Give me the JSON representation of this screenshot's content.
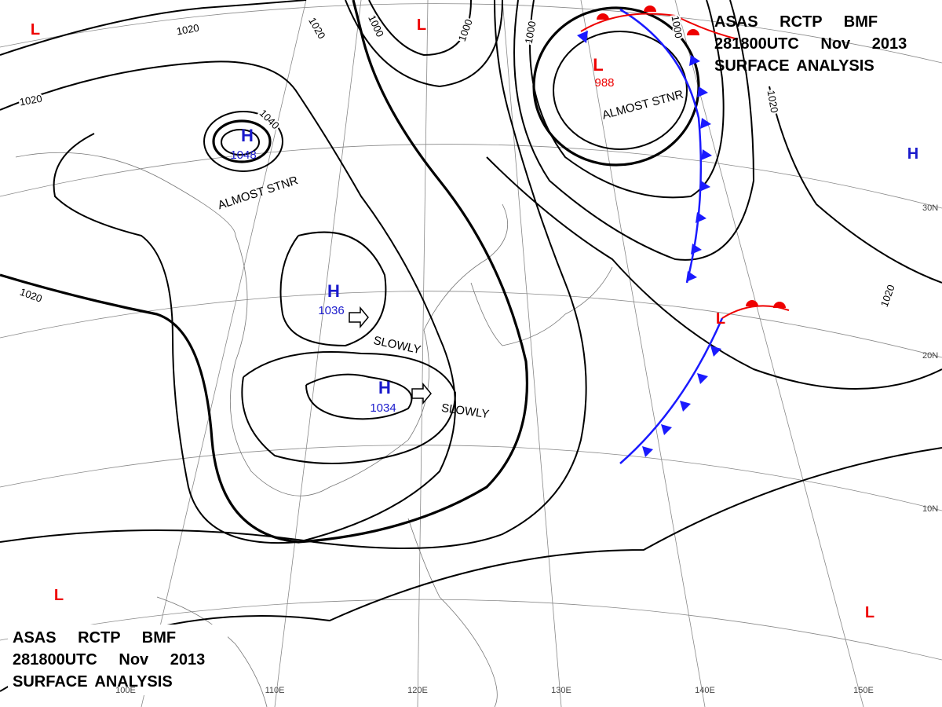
{
  "header_top": {
    "line1": "ASAS RCTP BMF",
    "line2": "281800UTC Nov 2013",
    "line3": "SURFACE ANALYSIS"
  },
  "header_bottom": {
    "line1": "ASAS RCTP BMF",
    "line2": "281800UTC Nov 2013",
    "line3": "SURFACE ANALYSIS"
  },
  "pressure_centers": [
    {
      "kind": "H",
      "value": "1048"
    },
    {
      "kind": "H",
      "value": "1036"
    },
    {
      "kind": "H",
      "value": "1034"
    },
    {
      "kind": "L",
      "value": "988"
    }
  ],
  "other_centers": [
    {
      "kind": "H"
    },
    {
      "kind": "L"
    },
    {
      "kind": "L"
    },
    {
      "kind": "L"
    },
    {
      "kind": "L"
    },
    {
      "kind": "L"
    }
  ],
  "motion_labels": [
    "ALMOST STNR",
    "ALMOST STNR",
    "SLOWLY",
    "SLOWLY"
  ],
  "isobar_labels": [
    "1020",
    "1020",
    "1020",
    "1000",
    "1000",
    "1000",
    "1040",
    "1020",
    "1020",
    "1020",
    "1000"
  ],
  "latitude_labels": [
    "30N",
    "20N",
    "10N"
  ],
  "longitude_labels": [
    "100E",
    "110E",
    "120E",
    "130E",
    "140E",
    "150E"
  ]
}
